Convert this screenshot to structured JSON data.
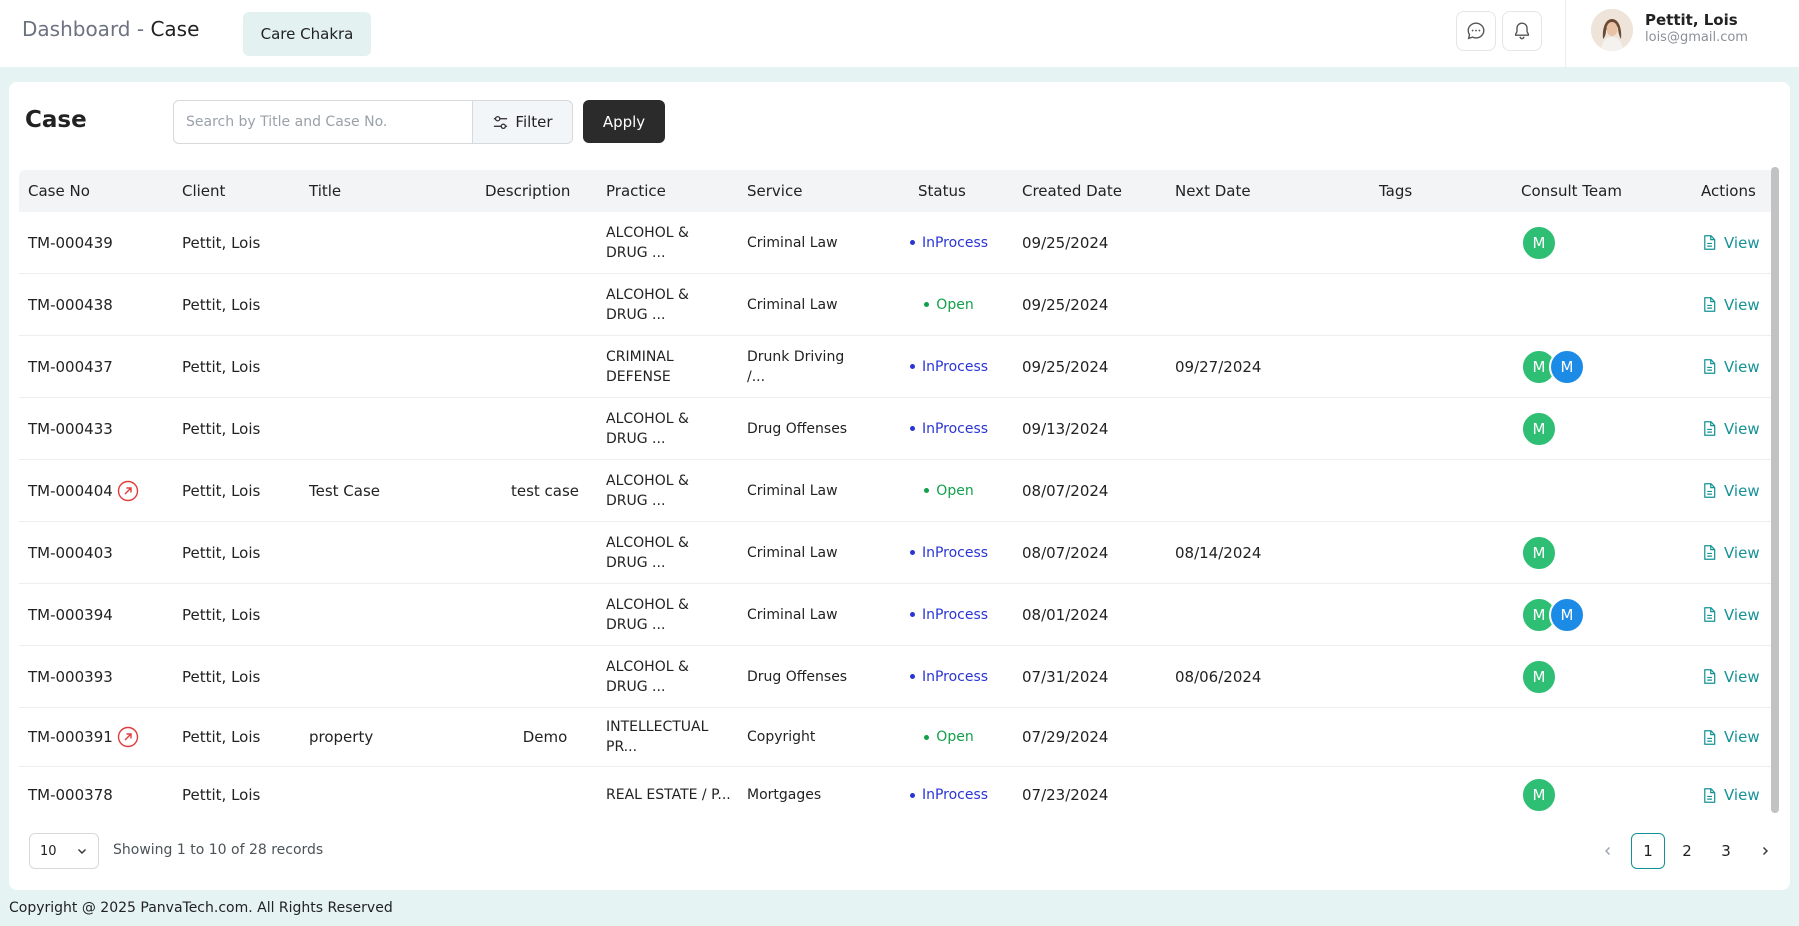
{
  "header": {
    "title_prefix": "Dashboard",
    "title_separator": "-",
    "title_page": "Case",
    "org_label": "Care Chakra",
    "user_name": "Pettit, Lois",
    "user_email": "lois@gmail.com"
  },
  "page": {
    "title": "Case",
    "search_placeholder": "Search by Title and Case No.",
    "filter_label": "Filter",
    "apply_label": "Apply"
  },
  "table": {
    "columns": [
      "Case No",
      "Client",
      "Title",
      "Description",
      "Practice",
      "Service",
      "Status",
      "Created Date",
      "Next Date",
      "Tags",
      "Consult Team",
      "Actions"
    ],
    "view_label": "View",
    "team_initial": "M",
    "rows": [
      {
        "case_no": "TM-000439",
        "linked": false,
        "client": "Pettit, Lois",
        "title": "",
        "description": "",
        "practice": "ALCOHOL & DRUG ...",
        "service": "Criminal Law",
        "status": "InProcess",
        "created": "09/25/2024",
        "next": "",
        "team": [
          "green"
        ]
      },
      {
        "case_no": "TM-000438",
        "linked": false,
        "client": "Pettit, Lois",
        "title": "",
        "description": "",
        "practice": "ALCOHOL & DRUG ...",
        "service": "Criminal Law",
        "status": "Open",
        "created": "09/25/2024",
        "next": "",
        "team": []
      },
      {
        "case_no": "TM-000437",
        "linked": false,
        "client": "Pettit, Lois",
        "title": "",
        "description": "",
        "practice": "CRIMINAL DEFENSE",
        "service": "Drunk Driving /...",
        "status": "InProcess",
        "created": "09/25/2024",
        "next": "09/27/2024",
        "team": [
          "green",
          "blue"
        ]
      },
      {
        "case_no": "TM-000433",
        "linked": false,
        "client": "Pettit, Lois",
        "title": "",
        "description": "",
        "practice": "ALCOHOL & DRUG ...",
        "service": "Drug Offenses",
        "status": "InProcess",
        "created": "09/13/2024",
        "next": "",
        "team": [
          "green"
        ]
      },
      {
        "case_no": "TM-000404",
        "linked": true,
        "client": "Pettit, Lois",
        "title": "Test Case",
        "description": "test case",
        "practice": "ALCOHOL & DRUG ...",
        "service": "Criminal Law",
        "status": "Open",
        "created": "08/07/2024",
        "next": "",
        "team": []
      },
      {
        "case_no": "TM-000403",
        "linked": false,
        "client": "Pettit, Lois",
        "title": "",
        "description": "",
        "practice": "ALCOHOL & DRUG ...",
        "service": "Criminal Law",
        "status": "InProcess",
        "created": "08/07/2024",
        "next": "08/14/2024",
        "team": [
          "green"
        ]
      },
      {
        "case_no": "TM-000394",
        "linked": false,
        "client": "Pettit, Lois",
        "title": "",
        "description": "",
        "practice": "ALCOHOL & DRUG ...",
        "service": "Criminal Law",
        "status": "InProcess",
        "created": "08/01/2024",
        "next": "",
        "team": [
          "green",
          "blue"
        ]
      },
      {
        "case_no": "TM-000393",
        "linked": false,
        "client": "Pettit, Lois",
        "title": "",
        "description": "",
        "practice": "ALCOHOL & DRUG ...",
        "service": "Drug Offenses",
        "status": "InProcess",
        "created": "07/31/2024",
        "next": "08/06/2024",
        "team": [
          "green"
        ]
      },
      {
        "case_no": "TM-000391",
        "linked": true,
        "client": "Pettit, Lois",
        "title": "property",
        "description": "Demo",
        "practice": "INTELLECTUAL PR...",
        "service": "Copyright",
        "status": "Open",
        "created": "07/29/2024",
        "next": "",
        "team": []
      },
      {
        "case_no": "TM-000378",
        "linked": false,
        "client": "Pettit, Lois",
        "title": "",
        "description": "",
        "practice": "REAL ESTATE / P...",
        "service": "Mortgages",
        "status": "InProcess",
        "created": "07/23/2024",
        "next": "",
        "team": [
          "green"
        ]
      }
    ]
  },
  "pagination": {
    "page_size": "10",
    "info": "Showing 1 to 10 of 28 records",
    "pages": [
      "1",
      "2",
      "3"
    ],
    "current": "1"
  },
  "footer": {
    "copyright": "Copyright @ 2025 PanvaTech.com. All Rights Reserved"
  },
  "colors": {
    "accent": "#159296",
    "inprocess": "#2a35d4",
    "open": "#12a04a",
    "badge_green": "#2ebf74",
    "badge_blue": "#1c8be6"
  }
}
